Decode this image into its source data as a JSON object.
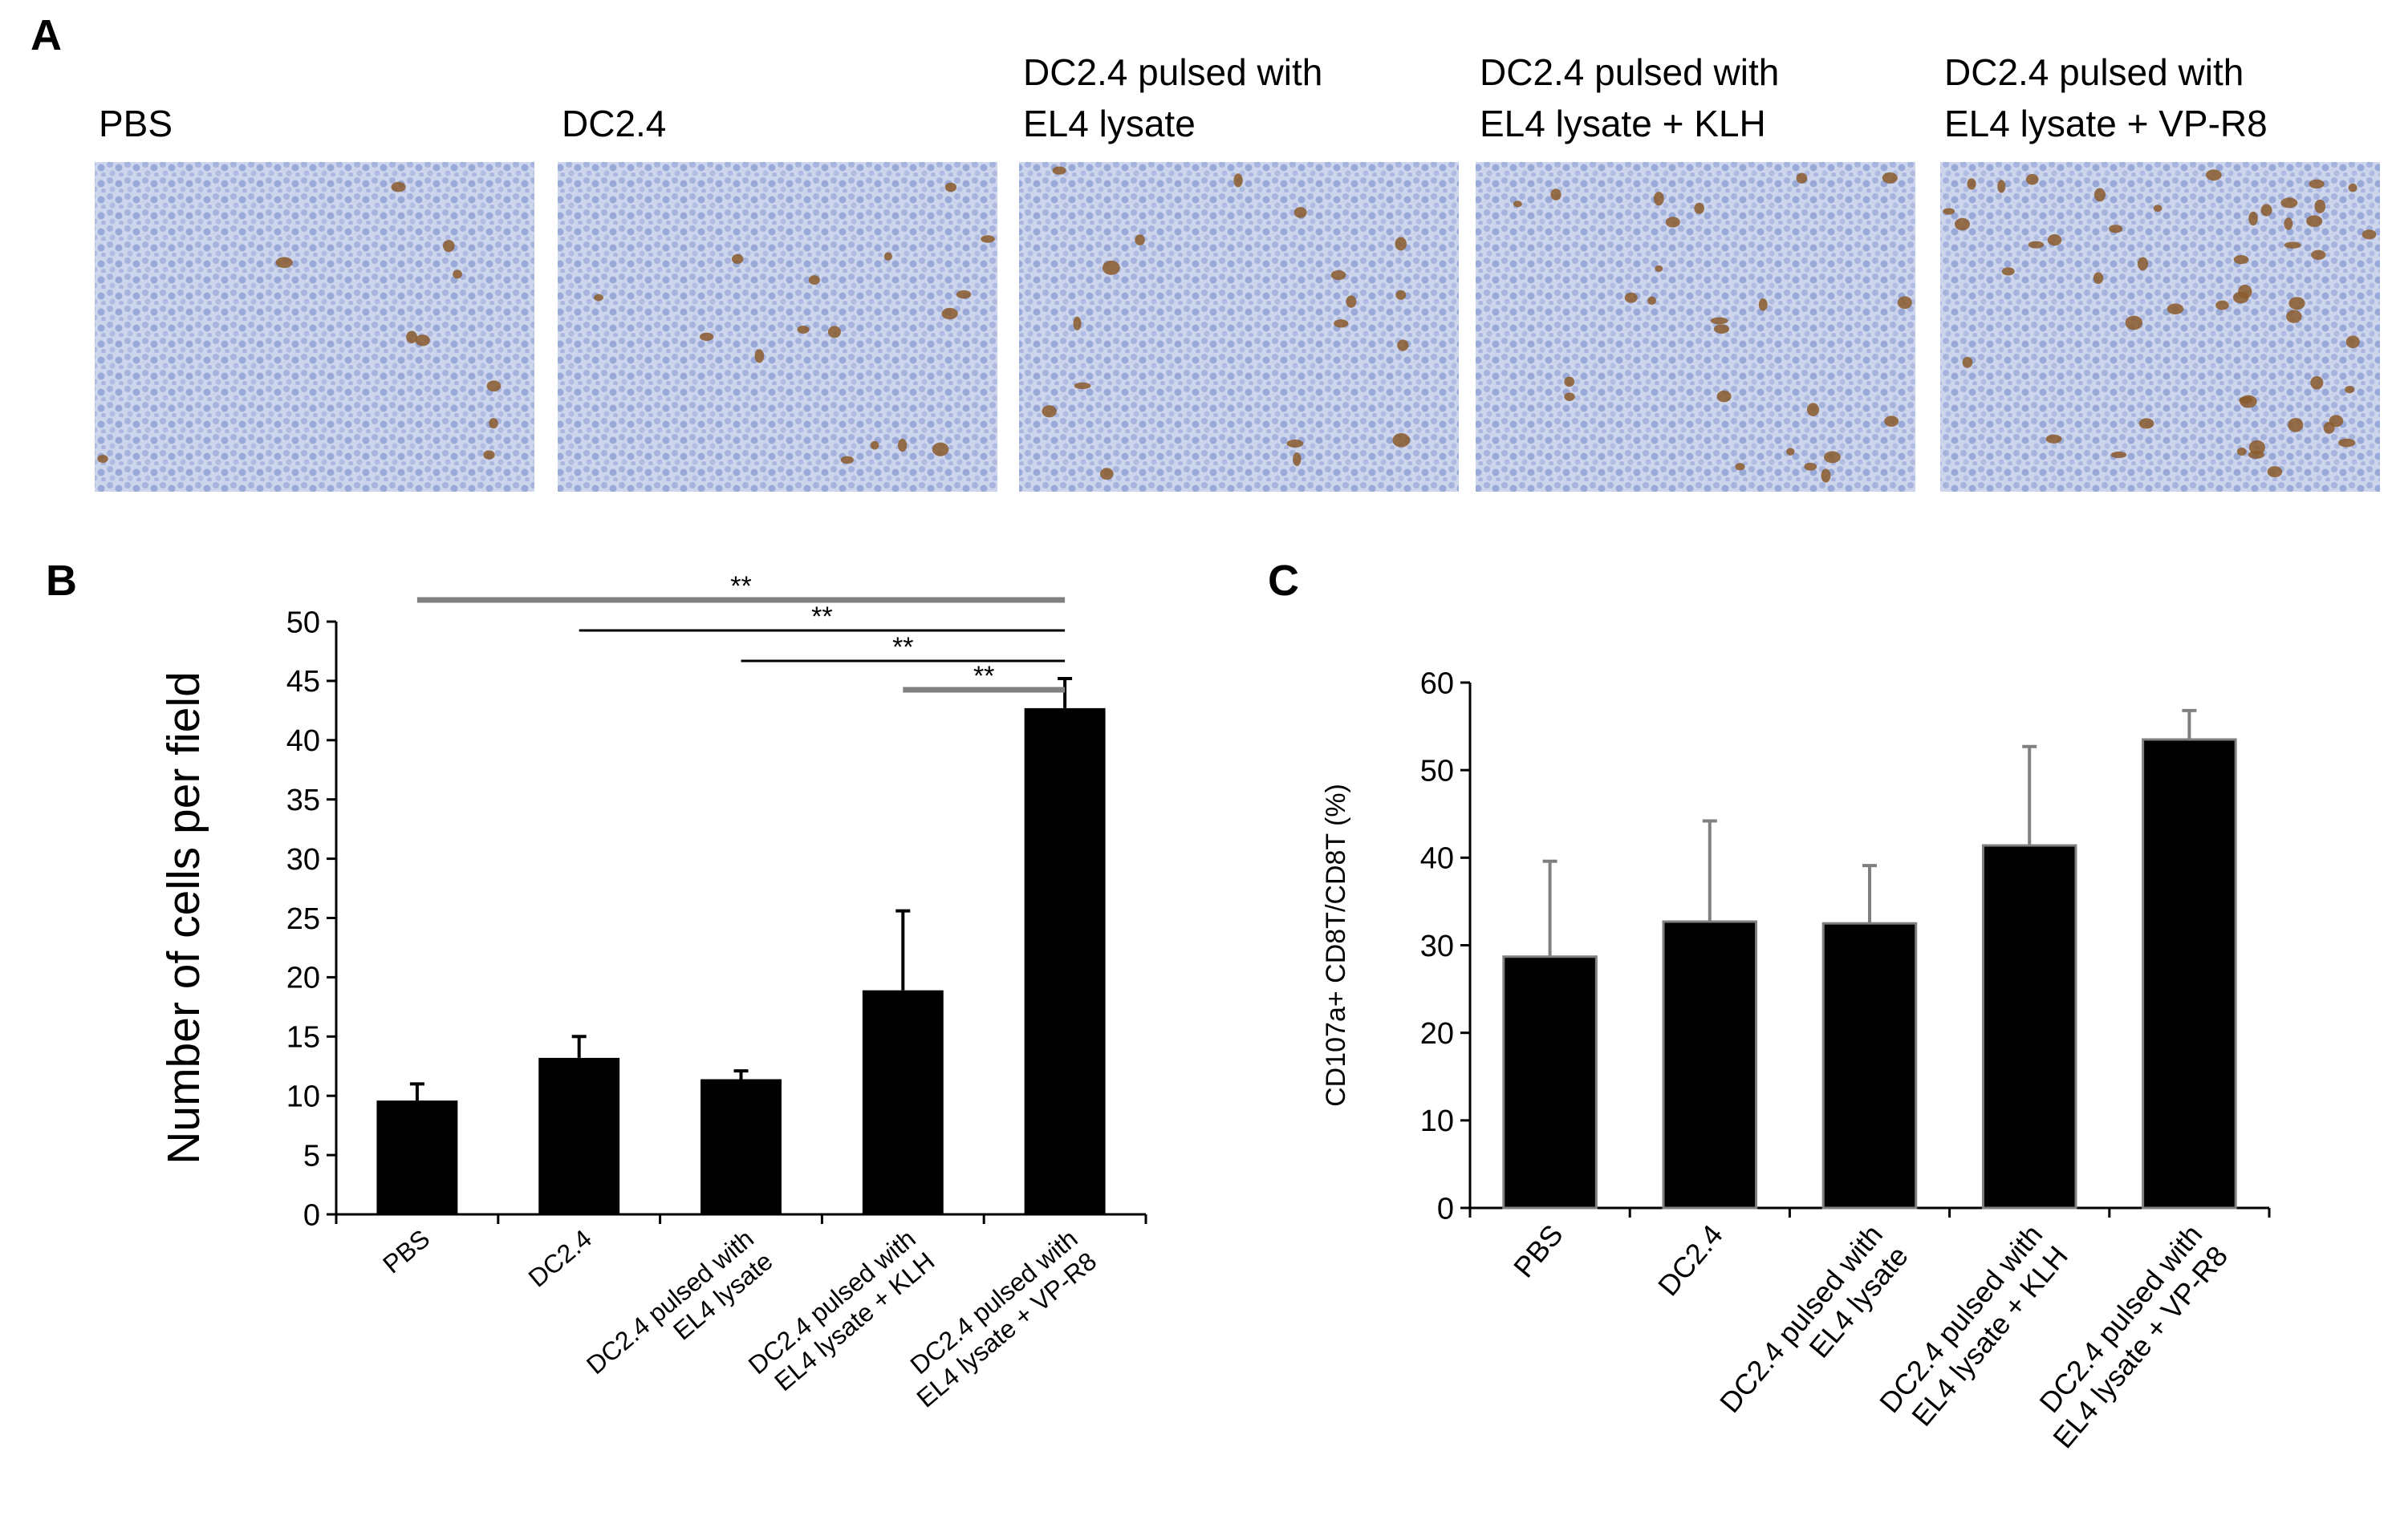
{
  "panel_a": {
    "label": "A",
    "images": [
      {
        "title": [
          "PBS"
        ]
      },
      {
        "title": [
          "DC2.4"
        ]
      },
      {
        "title": [
          "DC2.4 pulsed with",
          "EL4 lysate"
        ]
      },
      {
        "title": [
          "DC2.4 pulsed with",
          "EL4 lysate + KLH"
        ]
      },
      {
        "title": [
          "DC2.4 pulsed with",
          "EL4 lysate + VP-R8"
        ]
      }
    ]
  },
  "chart_data": [
    {
      "type": "bar",
      "panel_label": "B",
      "ylabel": "Number of cells per field",
      "categories": [
        [
          "PBS"
        ],
        [
          "DC2.4"
        ],
        [
          "DC2.4 pulsed with",
          "EL4 lysate"
        ],
        [
          "DC2.4 pulsed with",
          "EL4 lysate + KLH"
        ],
        [
          "DC2.4 pulsed with",
          "EL4 lysate + VP-R8"
        ]
      ],
      "values": [
        9.6,
        13.2,
        11.4,
        18.9,
        42.7
      ],
      "errors": [
        1.4,
        1.8,
        0.7,
        6.7,
        2.5
      ],
      "color": "#000000",
      "error_color": "#000000",
      "ylim": [
        0,
        50
      ],
      "yticks": [
        0,
        5,
        10,
        15,
        20,
        25,
        30,
        35,
        40,
        45,
        50
      ],
      "annotations": [
        {
          "from": 0,
          "to": 4,
          "text": "**"
        },
        {
          "from": 1,
          "to": 4,
          "text": "**"
        },
        {
          "from": 2,
          "to": 4,
          "text": "**"
        },
        {
          "from": 3,
          "to": 4,
          "text": "**"
        }
      ]
    },
    {
      "type": "bar",
      "panel_label": "C",
      "ylabel": "CD107a+ CD8T/CD8T (%)",
      "categories": [
        [
          "PBS"
        ],
        [
          "DC2.4"
        ],
        [
          "DC2.4 pulsed with",
          "EL4 lysate"
        ],
        [
          "DC2.4 pulsed with",
          "EL4 lysate + KLH"
        ],
        [
          "DC2.4 pulsed with",
          "EL4 lysate + VP-R8"
        ]
      ],
      "values": [
        28.7,
        32.7,
        32.5,
        41.4,
        53.5
      ],
      "errors": [
        10.9,
        11.5,
        6.6,
        11.3,
        3.3
      ],
      "color": "#000000",
      "edge_color": "#808080",
      "error_color": "#808080",
      "ylim": [
        0,
        60
      ],
      "yticks": [
        0,
        10,
        20,
        30,
        40,
        50,
        60
      ]
    }
  ]
}
